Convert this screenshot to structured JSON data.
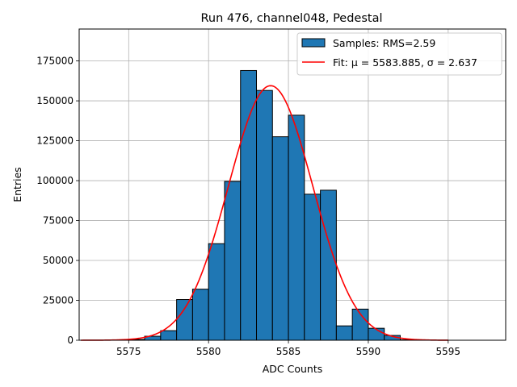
{
  "chart_data": {
    "type": "bar",
    "title": "Run 476, channel048, Pedestal",
    "xlabel": "ADC Counts",
    "ylabel": "Entries",
    "xlim": [
      5571.9,
      5598.6
    ],
    "ylim": [
      0,
      195000
    ],
    "grid": true,
    "legend_position": "top-right",
    "xticks": [
      5575,
      5580,
      5585,
      5590,
      5595
    ],
    "xtick_labels": [
      "5575",
      "5580",
      "5585",
      "5590",
      "5595"
    ],
    "yticks": [
      0,
      25000,
      50000,
      75000,
      100000,
      125000,
      150000,
      175000
    ],
    "ytick_labels": [
      "0",
      "25000",
      "50000",
      "75000",
      "100000",
      "125000",
      "150000",
      "175000"
    ],
    "bin_width": 1,
    "bins": [
      {
        "left": 5575,
        "count": 500
      },
      {
        "left": 5576,
        "count": 2500
      },
      {
        "left": 5577,
        "count": 6000
      },
      {
        "left": 5578,
        "count": 25500
      },
      {
        "left": 5579,
        "count": 32000
      },
      {
        "left": 5580,
        "count": 60500
      },
      {
        "left": 5581,
        "count": 99500
      },
      {
        "left": 5582,
        "count": 169000
      },
      {
        "left": 5583,
        "count": 156500
      },
      {
        "left": 5584,
        "count": 127500
      },
      {
        "left": 5585,
        "count": 141000
      },
      {
        "left": 5586,
        "count": 91500
      },
      {
        "left": 5587,
        "count": 94000
      },
      {
        "left": 5588,
        "count": 9000
      },
      {
        "left": 5589,
        "count": 19500
      },
      {
        "left": 5590,
        "count": 7500
      },
      {
        "left": 5591,
        "count": 3000
      },
      {
        "left": 5592,
        "count": 300
      }
    ],
    "fit": {
      "mu": 5583.885,
      "sigma": 2.637,
      "amplitude": 159500,
      "x_range": [
        5572,
        5595
      ]
    },
    "legend": [
      {
        "label": "Samples: RMS=2.59",
        "kind": "patch",
        "color": "#1f77b4"
      },
      {
        "label": "Fit: μ = 5583.885, σ = 2.637",
        "kind": "line",
        "color": "#ff0000"
      }
    ]
  }
}
